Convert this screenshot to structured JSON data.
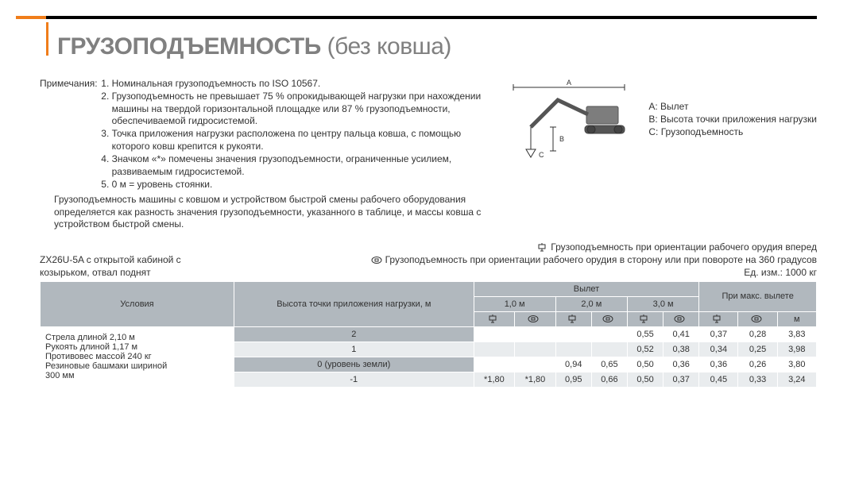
{
  "colors": {
    "accent": "#f07d1a",
    "grey_header": "#b1b8be",
    "grey_text": "#808080",
    "stripe": "#e9ecee",
    "rule": "#000000"
  },
  "title_main": "ГРУЗОПОДЪЕМНОСТЬ",
  "title_sub": "(без ковша)",
  "notes_label": "Примечания:",
  "notes": [
    "Номинальная грузоподъемность по ISO 10567.",
    "Грузоподъемность не превышает 75 % опрокидывающей нагрузки при нахождении машины на твердой горизонтальной площадке или 87 % грузоподъемности, обеспечиваемой гидросистемой.",
    "Точка приложения нагрузки расположена по центру пальца ковша, с помощью которого ковш крепится к рукояти.",
    "Значком «*» помечены значения грузоподъемности, ограниченные усилием, развиваемым гидросистемой.",
    "0 м = уровень стоянки."
  ],
  "subtext": "Грузоподъемность машины с ковшом и устройством быстрой смены рабочего оборудования определяется как разность значения грузоподъемности, указанного в таблице, и массы ковша с устройством быстрой смены.",
  "legend": {
    "a": "A: Вылет",
    "b": "B: Высота точки приложения нагрузки",
    "c": "C: Грузоподъемность"
  },
  "context_left": "ZX26U-5A с открытой кабиной с козырьком, отвал поднят",
  "context_right_1": "Грузоподъемность при ориентации рабочего орудия вперед",
  "context_right_2": "Грузоподъемность при ориентации рабочего орудия в сторону или при повороте на 360 градусов",
  "unit_label": "Ед. изм.: 1000 кг",
  "table": {
    "hdr_cond": "Условия",
    "hdr_height": "Высота точки приложения нагрузки, м",
    "hdr_reach": "Вылет",
    "hdr_max": "При макс. вылете",
    "reach_groups": [
      "1,0 м",
      "2,0 м",
      "3,0 м"
    ],
    "reach_m_label": "м",
    "cond_lines": [
      "Стрела длиной 2,10 м",
      "Рукоять длиной 1,17 м",
      "Противовес массой 240 кг",
      "Резиновые башмаки шириной",
      "300 мм"
    ],
    "rows": [
      {
        "h": "2",
        "v": [
          "",
          "",
          "",
          "",
          "0,55",
          "0,41",
          "0,37",
          "0,28",
          "3,83"
        ]
      },
      {
        "h": "1",
        "v": [
          "",
          "",
          "",
          "",
          "0,52",
          "0,38",
          "0,34",
          "0,25",
          "3,98"
        ]
      },
      {
        "h": "0 (уровень земли)",
        "v": [
          "",
          "",
          "0,94",
          "0,65",
          "0,50",
          "0,36",
          "0,36",
          "0,26",
          "3,80"
        ]
      },
      {
        "h": "-1",
        "v": [
          "*1,80",
          "*1,80",
          "0,95",
          "0,66",
          "0,50",
          "0,37",
          "0,45",
          "0,33",
          "3,24"
        ]
      }
    ]
  }
}
